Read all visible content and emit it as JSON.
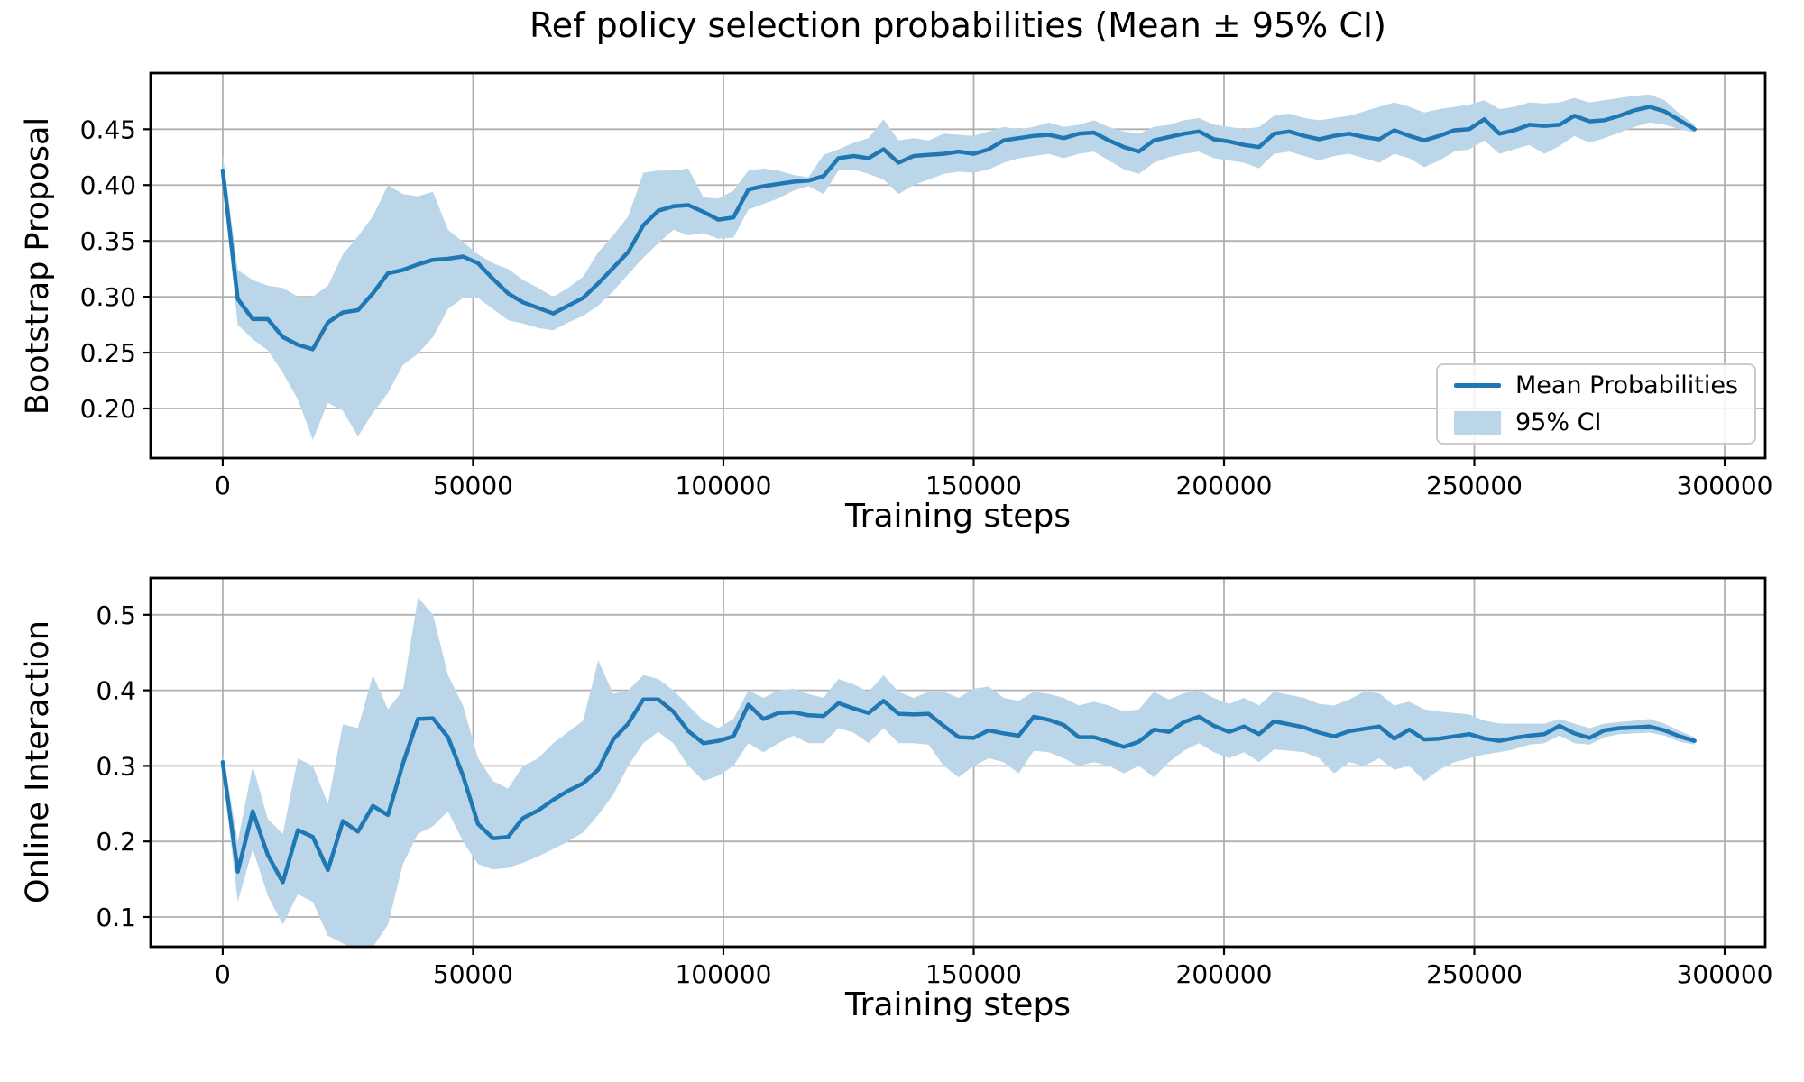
{
  "figure": {
    "background_color": "#ffffff",
    "text_color": "#000000",
    "line_color": "#1f77b4",
    "ci_fill_color": "#bcd6e9",
    "grid_color": "#b0b0b0",
    "spine_color": "#000000",
    "legend": {
      "line_label": "Mean Probabilities",
      "ci_label": "95% CI",
      "position": "lower right"
    }
  },
  "chart_data": [
    {
      "type": "line",
      "title": "Ref policy selection probabilities (Mean ± 95% CI)",
      "xlabel": "Training steps",
      "ylabel": "Bootstrap Proposal",
      "grid": true,
      "xlim": [
        -14400,
        308100
      ],
      "ylim": [
        0.1556,
        0.5003
      ],
      "x_ticks": [
        0,
        50000,
        100000,
        150000,
        200000,
        250000,
        300000
      ],
      "x_tick_labels": [
        "0",
        "50000",
        "100000",
        "150000",
        "200000",
        "250000",
        "300000"
      ],
      "y_ticks": [
        0.2,
        0.25,
        0.3,
        0.35,
        0.4,
        0.45
      ],
      "y_tick_labels": [
        "0.20",
        "0.25",
        "0.30",
        "0.35",
        "0.40",
        "0.45"
      ],
      "x": [
        0,
        3000,
        6000,
        9000,
        12000,
        15000,
        18000,
        21000,
        24000,
        27000,
        30000,
        33000,
        36000,
        39000,
        42000,
        45000,
        48000,
        51000,
        54000,
        57000,
        60000,
        63000,
        66000,
        69000,
        72000,
        75000,
        78000,
        81000,
        84000,
        87000,
        90000,
        93000,
        96000,
        99000,
        102000,
        105000,
        108000,
        111000,
        114000,
        117000,
        120000,
        123000,
        126000,
        129000,
        132000,
        135000,
        138000,
        141000,
        144000,
        147000,
        150000,
        153000,
        156000,
        159000,
        162000,
        165000,
        168000,
        171000,
        174000,
        177000,
        180000,
        183000,
        186000,
        189000,
        192000,
        195000,
        198000,
        201000,
        204000,
        207000,
        210000,
        213000,
        216000,
        219000,
        222000,
        225000,
        228000,
        231000,
        234000,
        237000,
        240000,
        243000,
        246000,
        249000,
        252000,
        255000,
        258000,
        261000,
        264000,
        267000,
        270000,
        273000,
        276000,
        279000,
        282000,
        285000,
        288000,
        291000,
        294000
      ],
      "series": [
        {
          "name": "Mean Probabilities",
          "values": [
            0.413,
            0.298,
            0.28,
            0.28,
            0.264,
            0.257,
            0.253,
            0.277,
            0.286,
            0.288,
            0.303,
            0.321,
            0.324,
            0.329,
            0.333,
            0.334,
            0.336,
            0.33,
            0.316,
            0.303,
            0.295,
            0.29,
            0.285,
            0.292,
            0.299,
            0.312,
            0.326,
            0.34,
            0.364,
            0.377,
            0.381,
            0.382,
            0.376,
            0.369,
            0.371,
            0.396,
            0.399,
            0.401,
            0.403,
            0.404,
            0.408,
            0.424,
            0.426,
            0.424,
            0.432,
            0.42,
            0.426,
            0.427,
            0.428,
            0.43,
            0.428,
            0.432,
            0.44,
            0.442,
            0.444,
            0.445,
            0.442,
            0.446,
            0.447,
            0.44,
            0.434,
            0.43,
            0.44,
            0.443,
            0.446,
            0.448,
            0.441,
            0.439,
            0.436,
            0.434,
            0.446,
            0.448,
            0.444,
            0.441,
            0.444,
            0.446,
            0.443,
            0.441,
            0.449,
            0.444,
            0.44,
            0.444,
            0.449,
            0.45,
            0.459,
            0.446,
            0.449,
            0.454,
            0.453,
            0.454,
            0.462,
            0.457,
            0.458,
            0.462,
            0.467,
            0.47,
            0.466,
            0.458,
            0.45
          ]
        },
        {
          "name": "95% CI lower",
          "values": [
            0.4,
            0.275,
            0.262,
            0.252,
            0.232,
            0.208,
            0.172,
            0.205,
            0.198,
            0.175,
            0.196,
            0.214,
            0.239,
            0.249,
            0.264,
            0.289,
            0.299,
            0.299,
            0.289,
            0.279,
            0.276,
            0.272,
            0.27,
            0.277,
            0.283,
            0.292,
            0.305,
            0.32,
            0.335,
            0.348,
            0.36,
            0.355,
            0.357,
            0.352,
            0.353,
            0.378,
            0.383,
            0.388,
            0.395,
            0.399,
            0.392,
            0.413,
            0.414,
            0.41,
            0.405,
            0.392,
            0.4,
            0.405,
            0.41,
            0.412,
            0.411,
            0.414,
            0.42,
            0.424,
            0.426,
            0.428,
            0.424,
            0.428,
            0.43,
            0.422,
            0.414,
            0.41,
            0.42,
            0.425,
            0.428,
            0.43,
            0.424,
            0.422,
            0.42,
            0.415,
            0.428,
            0.43,
            0.426,
            0.422,
            0.426,
            0.428,
            0.424,
            0.42,
            0.428,
            0.424,
            0.416,
            0.422,
            0.43,
            0.432,
            0.44,
            0.428,
            0.432,
            0.436,
            0.428,
            0.435,
            0.444,
            0.438,
            0.442,
            0.447,
            0.452,
            0.456,
            0.454,
            0.45,
            0.447
          ]
        },
        {
          "name": "95% CI upper",
          "values": [
            0.428,
            0.324,
            0.315,
            0.31,
            0.308,
            0.3,
            0.3,
            0.31,
            0.338,
            0.354,
            0.372,
            0.4,
            0.392,
            0.39,
            0.394,
            0.36,
            0.349,
            0.338,
            0.33,
            0.325,
            0.315,
            0.308,
            0.3,
            0.308,
            0.318,
            0.34,
            0.355,
            0.372,
            0.411,
            0.413,
            0.413,
            0.415,
            0.389,
            0.388,
            0.395,
            0.413,
            0.415,
            0.413,
            0.409,
            0.407,
            0.427,
            0.432,
            0.438,
            0.442,
            0.459,
            0.44,
            0.442,
            0.44,
            0.446,
            0.445,
            0.444,
            0.448,
            0.452,
            0.45,
            0.452,
            0.456,
            0.452,
            0.454,
            0.458,
            0.452,
            0.448,
            0.446,
            0.452,
            0.454,
            0.458,
            0.46,
            0.454,
            0.452,
            0.45,
            0.452,
            0.462,
            0.464,
            0.46,
            0.458,
            0.46,
            0.462,
            0.466,
            0.47,
            0.474,
            0.47,
            0.465,
            0.468,
            0.47,
            0.472,
            0.476,
            0.468,
            0.47,
            0.474,
            0.473,
            0.474,
            0.478,
            0.474,
            0.476,
            0.478,
            0.48,
            0.481,
            0.476,
            0.464,
            0.454
          ]
        }
      ]
    },
    {
      "type": "line",
      "title": "",
      "xlabel": "Training steps",
      "ylabel": "Online Interaction",
      "grid": true,
      "xlim": [
        -14400,
        308100
      ],
      "ylim": [
        0.0606,
        0.5487
      ],
      "x_ticks": [
        0,
        50000,
        100000,
        150000,
        200000,
        250000,
        300000
      ],
      "x_tick_labels": [
        "0",
        "50000",
        "100000",
        "150000",
        "200000",
        "250000",
        "300000"
      ],
      "y_ticks": [
        0.1,
        0.2,
        0.3,
        0.4,
        0.5
      ],
      "y_tick_labels": [
        "0.1",
        "0.2",
        "0.3",
        "0.4",
        "0.5"
      ],
      "x": [
        0,
        3000,
        6000,
        9000,
        12000,
        15000,
        18000,
        21000,
        24000,
        27000,
        30000,
        33000,
        36000,
        39000,
        42000,
        45000,
        48000,
        51000,
        54000,
        57000,
        60000,
        63000,
        66000,
        69000,
        72000,
        75000,
        78000,
        81000,
        84000,
        87000,
        90000,
        93000,
        96000,
        99000,
        102000,
        105000,
        108000,
        111000,
        114000,
        117000,
        120000,
        123000,
        126000,
        129000,
        132000,
        135000,
        138000,
        141000,
        144000,
        147000,
        150000,
        153000,
        156000,
        159000,
        162000,
        165000,
        168000,
        171000,
        174000,
        177000,
        180000,
        183000,
        186000,
        189000,
        192000,
        195000,
        198000,
        201000,
        204000,
        207000,
        210000,
        213000,
        216000,
        219000,
        222000,
        225000,
        228000,
        231000,
        234000,
        237000,
        240000,
        243000,
        246000,
        249000,
        252000,
        255000,
        258000,
        261000,
        264000,
        267000,
        270000,
        273000,
        276000,
        279000,
        282000,
        285000,
        288000,
        291000,
        294000
      ],
      "series": [
        {
          "name": "Mean Probabilities",
          "values": [
            0.305,
            0.16,
            0.24,
            0.182,
            0.146,
            0.215,
            0.206,
            0.162,
            0.227,
            0.213,
            0.247,
            0.235,
            0.303,
            0.362,
            0.363,
            0.338,
            0.287,
            0.223,
            0.204,
            0.206,
            0.231,
            0.241,
            0.255,
            0.267,
            0.277,
            0.295,
            0.335,
            0.356,
            0.388,
            0.388,
            0.372,
            0.346,
            0.33,
            0.333,
            0.339,
            0.381,
            0.362,
            0.37,
            0.371,
            0.367,
            0.366,
            0.383,
            0.376,
            0.37,
            0.386,
            0.369,
            0.368,
            0.369,
            0.353,
            0.338,
            0.337,
            0.347,
            0.343,
            0.34,
            0.365,
            0.361,
            0.354,
            0.338,
            0.338,
            0.332,
            0.325,
            0.332,
            0.348,
            0.345,
            0.358,
            0.365,
            0.353,
            0.345,
            0.352,
            0.342,
            0.359,
            0.355,
            0.351,
            0.344,
            0.339,
            0.346,
            0.349,
            0.352,
            0.336,
            0.348,
            0.335,
            0.336,
            0.339,
            0.342,
            0.336,
            0.333,
            0.337,
            0.34,
            0.342,
            0.353,
            0.343,
            0.337,
            0.347,
            0.35,
            0.351,
            0.352,
            0.347,
            0.339,
            0.333
          ]
        },
        {
          "name": "95% CI lower",
          "values": [
            0.292,
            0.12,
            0.19,
            0.128,
            0.09,
            0.13,
            0.12,
            0.075,
            0.065,
            0.055,
            0.06,
            0.09,
            0.17,
            0.21,
            0.22,
            0.24,
            0.2,
            0.17,
            0.163,
            0.165,
            0.172,
            0.18,
            0.19,
            0.2,
            0.212,
            0.235,
            0.262,
            0.3,
            0.33,
            0.345,
            0.33,
            0.3,
            0.28,
            0.287,
            0.3,
            0.33,
            0.318,
            0.33,
            0.34,
            0.33,
            0.33,
            0.35,
            0.344,
            0.33,
            0.35,
            0.33,
            0.33,
            0.328,
            0.3,
            0.285,
            0.3,
            0.31,
            0.305,
            0.29,
            0.32,
            0.318,
            0.31,
            0.3,
            0.305,
            0.3,
            0.29,
            0.3,
            0.285,
            0.305,
            0.32,
            0.33,
            0.318,
            0.31,
            0.318,
            0.305,
            0.322,
            0.32,
            0.318,
            0.31,
            0.29,
            0.305,
            0.3,
            0.31,
            0.295,
            0.3,
            0.28,
            0.295,
            0.305,
            0.31,
            0.315,
            0.318,
            0.322,
            0.328,
            0.33,
            0.34,
            0.33,
            0.328,
            0.338,
            0.342,
            0.343,
            0.344,
            0.34,
            0.332,
            0.328
          ]
        },
        {
          "name": "95% CI upper",
          "values": [
            0.318,
            0.2,
            0.3,
            0.23,
            0.21,
            0.31,
            0.3,
            0.25,
            0.355,
            0.35,
            0.42,
            0.375,
            0.4,
            0.523,
            0.5,
            0.42,
            0.38,
            0.31,
            0.28,
            0.27,
            0.3,
            0.31,
            0.33,
            0.345,
            0.36,
            0.44,
            0.395,
            0.4,
            0.42,
            0.415,
            0.4,
            0.38,
            0.36,
            0.35,
            0.362,
            0.4,
            0.39,
            0.4,
            0.402,
            0.395,
            0.39,
            0.415,
            0.408,
            0.398,
            0.42,
            0.398,
            0.39,
            0.398,
            0.398,
            0.39,
            0.402,
            0.405,
            0.39,
            0.386,
            0.398,
            0.395,
            0.39,
            0.38,
            0.385,
            0.38,
            0.372,
            0.375,
            0.398,
            0.388,
            0.396,
            0.4,
            0.39,
            0.382,
            0.39,
            0.38,
            0.398,
            0.394,
            0.39,
            0.382,
            0.38,
            0.388,
            0.398,
            0.396,
            0.38,
            0.385,
            0.375,
            0.372,
            0.37,
            0.368,
            0.36,
            0.356,
            0.356,
            0.356,
            0.356,
            0.362,
            0.356,
            0.35,
            0.356,
            0.358,
            0.36,
            0.362,
            0.356,
            0.346,
            0.338
          ]
        }
      ]
    }
  ]
}
